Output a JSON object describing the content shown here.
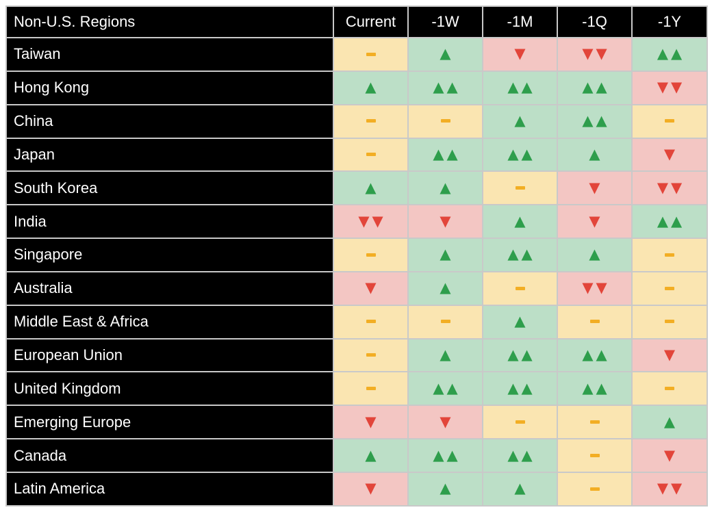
{
  "chart_data": {
    "type": "heatmap",
    "title": "Non-U.S. Regions",
    "columns": [
      "Current",
      "-1W",
      "-1M",
      "-1Q",
      "-1Y"
    ],
    "rows": [
      {
        "region": "Taiwan",
        "cells": [
          "-",
          "▲",
          "▼",
          "▼▼",
          "▲▲"
        ]
      },
      {
        "region": "Hong Kong",
        "cells": [
          "▲",
          "▲▲",
          "▲▲",
          "▲▲",
          "▼▼"
        ]
      },
      {
        "region": "China",
        "cells": [
          "-",
          "-",
          "▲",
          "▲▲",
          "-"
        ]
      },
      {
        "region": "Japan",
        "cells": [
          "-",
          "▲▲",
          "▲▲",
          "▲",
          "▼"
        ]
      },
      {
        "region": "South Korea",
        "cells": [
          "▲",
          "▲",
          "-",
          "▼",
          "▼▼"
        ]
      },
      {
        "region": "India",
        "cells": [
          "▼▼",
          "▼",
          "▲",
          "▼",
          "▲▲"
        ]
      },
      {
        "region": "Singapore",
        "cells": [
          "-",
          "▲",
          "▲▲",
          "▲",
          "-"
        ]
      },
      {
        "region": "Australia",
        "cells": [
          "▼",
          "▲",
          "-",
          "▼▼",
          "-"
        ]
      },
      {
        "region": "Middle East & Africa",
        "cells": [
          "-",
          "-",
          "▲",
          "-",
          "-"
        ]
      },
      {
        "region": "European Union",
        "cells": [
          "-",
          "▲",
          "▲▲",
          "▲▲",
          "▼"
        ]
      },
      {
        "region": "United Kingdom",
        "cells": [
          "-",
          "▲▲",
          "▲▲",
          "▲▲",
          "-"
        ]
      },
      {
        "region": "Emerging Europe",
        "cells": [
          "▼",
          "▼",
          "-",
          "-",
          "▲"
        ]
      },
      {
        "region": "Canada",
        "cells": [
          "▲",
          "▲▲",
          "▲▲",
          "-",
          "▼"
        ]
      },
      {
        "region": "Latin America",
        "cells": [
          "▼",
          "▲",
          "▲",
          "-",
          "▼▼"
        ]
      }
    ],
    "cell_encoding": {
      "-": {
        "meaning": "neutral",
        "bg": "#fae5b1",
        "fg": "#f2ae24"
      },
      "▲": {
        "meaning": "up",
        "bg": "#bcdfc7",
        "fg": "#2e9e4c"
      },
      "▲▲": {
        "meaning": "strong-up",
        "bg": "#bcdfc7",
        "fg": "#2e9e4c"
      },
      "▼": {
        "meaning": "down",
        "bg": "#f3c6c3",
        "fg": "#e2453a"
      },
      "▼▼": {
        "meaning": "strong-down",
        "bg": "#f3c6c3",
        "fg": "#e2453a"
      }
    },
    "layout_hints": {
      "header_bg": "#000000",
      "header_fg": "#ffffff",
      "grid_color": "#c9c9c9",
      "page_bg": "#ffffff"
    }
  }
}
